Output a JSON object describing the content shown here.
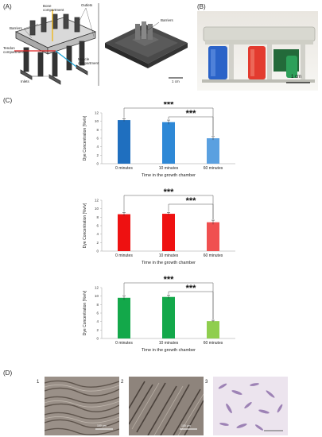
{
  "panels": {
    "a": {
      "label": "(A)",
      "callouts": {
        "bone": "Bone\ncompartment",
        "outlets": "Outlets",
        "barriers": "Barriers",
        "tendon": "Tendon\ncompartment",
        "muscle": "Muscle\ncompartment",
        "inlets": "Inlets",
        "barriers_right": "Barriers"
      },
      "scale": "1 cm"
    },
    "b": {
      "label": "(B)",
      "scale": "1 cm"
    },
    "c": {
      "label": "(C)"
    },
    "d": {
      "label": "(D)",
      "images": [
        {
          "num": "1",
          "scale": "100 μm"
        },
        {
          "num": "2",
          "scale": "100 μm"
        },
        {
          "num": "3",
          "scale": ""
        }
      ]
    }
  },
  "chart_data": [
    {
      "type": "bar",
      "categories": [
        "0 minutes",
        "10 minutes",
        "60 minutes"
      ],
      "values": [
        10.3,
        9.8,
        6.0
      ],
      "errors": [
        0.3,
        0.5,
        0.4
      ],
      "colors": [
        "#1f6fbf",
        "#2e88d6",
        "#5aa0e0"
      ],
      "xlabel": "Time in the growth chamber",
      "ylabel": "Dye Concentration [%v/v]",
      "ylim": [
        0,
        12
      ],
      "yticks": [
        0,
        2,
        4,
        6,
        8,
        10,
        12
      ],
      "significance": [
        "***",
        "***"
      ]
    },
    {
      "type": "bar",
      "categories": [
        "0 minutes",
        "10 minutes",
        "60 minutes"
      ],
      "values": [
        8.7,
        8.8,
        6.8
      ],
      "errors": [
        0.4,
        0.3,
        0.5
      ],
      "colors": [
        "#ee1111",
        "#ee1111",
        "#f05050"
      ],
      "xlabel": "Time in the growth chamber",
      "ylabel": "Dye Concentration [%v/v]",
      "ylim": [
        0,
        12
      ],
      "yticks": [
        0,
        2,
        4,
        6,
        8,
        10,
        12
      ],
      "significance": [
        "***",
        "***"
      ]
    },
    {
      "type": "bar",
      "categories": [
        "0 minutes",
        "10 minutes",
        "60 minutes"
      ],
      "values": [
        9.6,
        9.8,
        4.1
      ],
      "errors": [
        0.5,
        0.4,
        0.2
      ],
      "colors": [
        "#13a84a",
        "#13a84a",
        "#8fce4e"
      ],
      "xlabel": "Time in the growth chamber",
      "ylabel": "Dye Concentration [%v/v]",
      "ylim": [
        0,
        12
      ],
      "yticks": [
        0,
        2,
        4,
        6,
        8,
        10,
        12
      ],
      "significance": [
        "***",
        "***"
      ]
    }
  ]
}
